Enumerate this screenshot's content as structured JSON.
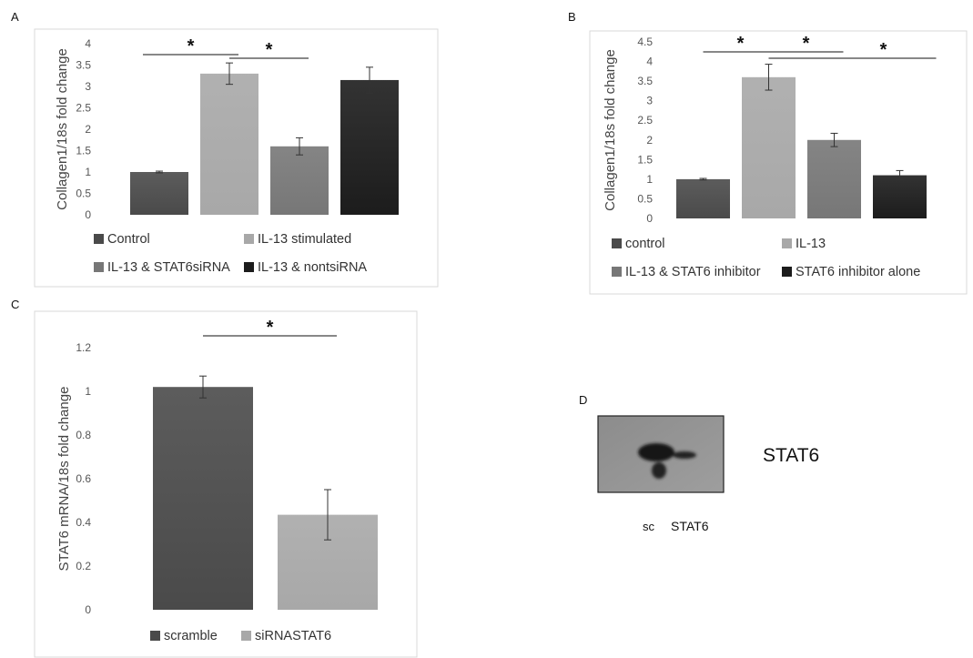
{
  "chart_data": [
    {
      "panel": "A",
      "type": "bar",
      "ylabel": "Collagen1/18s fold change",
      "ylim": [
        0,
        4
      ],
      "yticks": [
        "0",
        "0.5",
        "1",
        "1.5",
        "2",
        "2.5",
        "3",
        "3.5",
        "4"
      ],
      "categories": [
        "Control",
        "IL-13 stimulated",
        "IL-13 & STAT6siRNA",
        "IL-13 & nontsiRNA"
      ],
      "values": [
        1.0,
        3.3,
        1.6,
        3.15
      ],
      "errors": [
        0.02,
        0.25,
        0.2,
        0.3
      ],
      "colors": [
        "#4a4a4a",
        "#a8a8a8",
        "#777777",
        "#1c1c1c"
      ],
      "significance": [
        {
          "from": 0,
          "to": 1,
          "label": "*"
        },
        {
          "from": 1,
          "to": 2,
          "label": "*"
        }
      ],
      "grid": false,
      "legend": "bottom"
    },
    {
      "panel": "B",
      "type": "bar",
      "ylabel": "Collagen1/18s fold change",
      "ylim": [
        0,
        4.5
      ],
      "yticks": [
        "0",
        "0.5",
        "1",
        "1.5",
        "2",
        "2.5",
        "3",
        "3.5",
        "4",
        "4.5"
      ],
      "categories": [
        "control",
        "IL-13",
        "IL-13 & STAT6 inhibitor",
        "STAT6 inhibitor alone"
      ],
      "values": [
        1.0,
        3.6,
        2.0,
        1.1
      ],
      "errors": [
        0.02,
        0.33,
        0.17,
        0.12
      ],
      "colors": [
        "#4a4a4a",
        "#a8a8a8",
        "#777777",
        "#1c1c1c"
      ],
      "significance": [
        {
          "from": 0,
          "to": 1,
          "label": "*"
        },
        {
          "from": 1,
          "to": 2,
          "label": "*"
        },
        {
          "from": 1,
          "to": 3,
          "label": "*"
        }
      ],
      "grid": false,
      "legend": "bottom"
    },
    {
      "panel": "C",
      "type": "bar",
      "ylabel": "STAT6 mRNA/18s fold change",
      "ylim": [
        0,
        1.2
      ],
      "yticks": [
        "0",
        "0.2",
        "0.4",
        "0.6",
        "0.8",
        "1",
        "1.2"
      ],
      "categories": [
        "scramble",
        "siRNASTAT6"
      ],
      "values": [
        1.02,
        0.435
      ],
      "errors": [
        0.05,
        0.115
      ],
      "colors": [
        "#4a4a4a",
        "#a8a8a8"
      ],
      "significance": [
        {
          "from": 0,
          "to": 1,
          "label": "*"
        }
      ],
      "grid": false,
      "legend": "bottom"
    }
  ],
  "blot": {
    "panel": "D",
    "protein_label": "STAT6",
    "lane_labels": [
      "sc",
      "STAT6"
    ]
  }
}
